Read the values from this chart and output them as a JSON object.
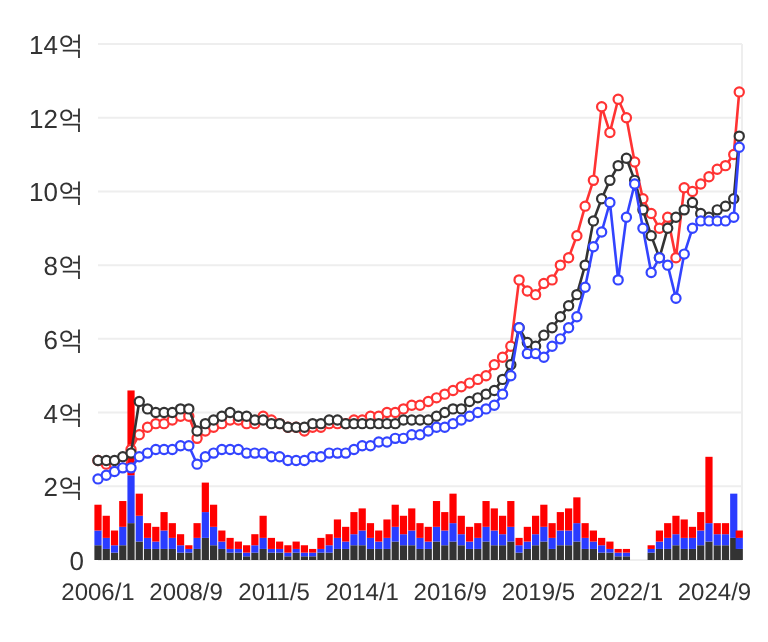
{
  "chart_data": {
    "type": "line",
    "x": [
      "2006-01",
      "2006-04",
      "2006-07",
      "2006-10",
      "2007-01",
      "2007-04",
      "2007-07",
      "2007-10",
      "2008-01",
      "2008-04",
      "2008-07",
      "2008-10",
      "2009-01",
      "2009-04",
      "2009-07",
      "2009-10",
      "2010-01",
      "2010-04",
      "2010-07",
      "2010-10",
      "2011-01",
      "2011-04",
      "2011-07",
      "2011-10",
      "2012-01",
      "2012-04",
      "2012-07",
      "2012-10",
      "2013-01",
      "2013-04",
      "2013-07",
      "2013-10",
      "2014-01",
      "2014-04",
      "2014-07",
      "2014-10",
      "2015-01",
      "2015-04",
      "2015-07",
      "2015-10",
      "2016-01",
      "2016-04",
      "2016-07",
      "2016-10",
      "2017-01",
      "2017-04",
      "2017-07",
      "2017-10",
      "2018-01",
      "2018-04",
      "2018-07",
      "2018-10",
      "2019-01",
      "2019-04",
      "2019-07",
      "2019-10",
      "2020-01",
      "2020-04",
      "2020-07",
      "2020-10",
      "2021-01",
      "2021-04",
      "2021-07",
      "2021-10",
      "2022-01",
      "2022-04",
      "2022-07",
      "2022-10",
      "2023-01",
      "2023-04",
      "2023-07",
      "2023-10",
      "2024-01",
      "2024-04",
      "2024-07",
      "2024-10",
      "2025-01",
      "2025-04",
      "2025-06"
    ],
    "series": [
      {
        "type": "bar",
        "color": "#333333",
        "values": [
          0.4,
          0.3,
          0.2,
          0.4,
          1.0,
          0.5,
          0.3,
          0.3,
          0.3,
          0.3,
          0.2,
          0.2,
          0.3,
          0.6,
          0.4,
          0.3,
          0.2,
          0.2,
          0.1,
          0.2,
          0.3,
          0.2,
          0.2,
          0.1,
          0.2,
          0.1,
          0.1,
          0.2,
          0.2,
          0.3,
          0.3,
          0.4,
          0.4,
          0.3,
          0.3,
          0.3,
          0.5,
          0.4,
          0.4,
          0.3,
          0.3,
          0.5,
          0.4,
          0.5,
          0.4,
          0.3,
          0.3,
          0.5,
          0.4,
          0.4,
          0.5,
          0.2,
          0.3,
          0.4,
          0.5,
          0.3,
          0.4,
          0.4,
          0.5,
          0.3,
          0.3,
          0.2,
          0.2,
          0.1,
          0.1,
          null,
          null,
          0.2,
          0.3,
          0.3,
          0.4,
          0.3,
          0.3,
          0.4,
          0.5,
          0.4,
          0.4,
          0.6,
          0.3
        ]
      },
      {
        "type": "bar",
        "color": "#2a3cff",
        "values": [
          0.4,
          0.3,
          0.2,
          0.5,
          1.3,
          0.7,
          0.3,
          0.2,
          0.5,
          0.3,
          0.2,
          0.1,
          0.3,
          0.7,
          0.5,
          0.2,
          0.1,
          0.1,
          0.1,
          0.2,
          0.3,
          0.1,
          0.1,
          0.1,
          0.1,
          0.1,
          0.1,
          0.1,
          0.2,
          0.3,
          0.2,
          0.3,
          0.4,
          0.3,
          0.2,
          0.3,
          0.4,
          0.3,
          0.4,
          0.3,
          0.2,
          0.4,
          0.4,
          0.5,
          0.3,
          0.2,
          0.3,
          0.4,
          0.4,
          0.3,
          0.4,
          0.2,
          0.2,
          0.3,
          0.4,
          0.3,
          0.4,
          0.4,
          0.5,
          0.3,
          0.2,
          0.2,
          0.1,
          0.1,
          0.1,
          null,
          null,
          0.1,
          0.2,
          0.3,
          0.3,
          0.3,
          0.3,
          0.4,
          0.5,
          0.3,
          0.3,
          1.2,
          0.3
        ]
      },
      {
        "type": "bar",
        "color": "#ff0000",
        "values": [
          0.7,
          0.6,
          0.4,
          0.7,
          2.3,
          0.6,
          0.4,
          0.4,
          0.5,
          0.4,
          0.3,
          0.1,
          0.4,
          0.8,
          0.6,
          0.3,
          0.3,
          0.2,
          0.2,
          0.3,
          0.6,
          0.3,
          0.2,
          0.2,
          0.2,
          0.2,
          0.1,
          0.3,
          0.3,
          0.5,
          0.4,
          0.6,
          0.6,
          0.4,
          0.3,
          0.5,
          0.6,
          0.5,
          0.6,
          0.4,
          0.4,
          0.7,
          0.5,
          0.8,
          0.5,
          0.4,
          0.4,
          0.7,
          0.6,
          0.5,
          0.7,
          0.2,
          0.4,
          0.5,
          0.6,
          0.4,
          0.5,
          0.6,
          0.7,
          0.4,
          0.3,
          0.2,
          0.2,
          0.1,
          0.1,
          null,
          null,
          0.1,
          0.3,
          0.4,
          0.5,
          0.5,
          0.3,
          0.5,
          1.8,
          0.3,
          0.3,
          null,
          0.2
        ]
      },
      {
        "color": "#ff3333",
        "values": [
          2.7,
          2.6,
          2.6,
          2.7,
          3.0,
          3.4,
          3.6,
          3.7,
          3.7,
          3.8,
          3.9,
          3.9,
          3.3,
          3.5,
          3.6,
          3.7,
          3.8,
          3.8,
          3.7,
          3.7,
          3.9,
          3.8,
          3.7,
          3.6,
          3.6,
          3.5,
          3.6,
          3.6,
          3.7,
          3.7,
          3.7,
          3.8,
          3.8,
          3.9,
          3.9,
          4.0,
          4.0,
          4.1,
          4.2,
          4.2,
          4.3,
          4.4,
          4.5,
          4.6,
          4.7,
          4.8,
          4.9,
          5.0,
          5.3,
          5.5,
          5.8,
          7.6,
          7.3,
          7.2,
          7.5,
          7.6,
          8.0,
          8.2,
          8.8,
          9.6,
          10.3,
          12.3,
          11.6,
          12.5,
          12.0,
          10.8,
          9.8,
          9.4,
          9.0,
          9.3,
          8.2,
          10.1,
          10.0,
          10.2,
          10.4,
          10.6,
          10.7,
          11.0,
          12.7
        ]
      },
      {
        "color": "#333333",
        "values": [
          2.7,
          2.7,
          2.7,
          2.8,
          2.9,
          4.3,
          4.1,
          4.0,
          4.0,
          4.0,
          4.1,
          4.1,
          3.5,
          3.7,
          3.8,
          3.9,
          4.0,
          3.9,
          3.9,
          3.8,
          3.8,
          3.7,
          3.7,
          3.6,
          3.6,
          3.6,
          3.7,
          3.7,
          3.8,
          3.8,
          3.7,
          3.7,
          3.7,
          3.7,
          3.7,
          3.7,
          3.7,
          3.8,
          3.8,
          3.8,
          3.8,
          3.9,
          4.0,
          4.1,
          4.1,
          4.3,
          4.4,
          4.5,
          4.6,
          4.9,
          5.3,
          6.3,
          5.9,
          5.8,
          6.1,
          6.3,
          6.6,
          6.9,
          7.2,
          8.0,
          9.2,
          9.8,
          10.3,
          10.7,
          10.9,
          10.3,
          9.5,
          8.8,
          8.2,
          9.0,
          9.3,
          9.5,
          9.7,
          9.4,
          9.3,
          9.5,
          9.6,
          9.8,
          11.5
        ]
      },
      {
        "color": "#3344ff",
        "values": [
          2.2,
          2.3,
          2.4,
          2.5,
          2.5,
          2.8,
          2.9,
          3.0,
          3.0,
          3.0,
          3.1,
          3.1,
          2.6,
          2.8,
          2.9,
          3.0,
          3.0,
          3.0,
          2.9,
          2.9,
          2.9,
          2.8,
          2.8,
          2.7,
          2.7,
          2.7,
          2.8,
          2.8,
          2.9,
          2.9,
          2.9,
          3.0,
          3.1,
          3.1,
          3.2,
          3.2,
          3.3,
          3.3,
          3.4,
          3.4,
          3.5,
          3.6,
          3.6,
          3.7,
          3.8,
          3.9,
          4.0,
          4.1,
          4.2,
          4.5,
          5.0,
          6.3,
          5.6,
          5.6,
          5.5,
          5.8,
          6.0,
          6.3,
          6.6,
          7.4,
          8.5,
          8.9,
          9.7,
          7.6,
          9.3,
          10.2,
          9.0,
          7.8,
          8.2,
          8.0,
          7.1,
          8.3,
          9.0,
          9.2,
          9.2,
          9.2,
          9.2,
          9.3,
          11.2
        ]
      }
    ],
    "xlim": [
      "2006-01",
      "2025-07"
    ],
    "xticks": [
      {
        "value": "2006-01",
        "label": "2006/1"
      },
      {
        "value": "2008-09",
        "label": "2008/9"
      },
      {
        "value": "2011-05",
        "label": "2011/5"
      },
      {
        "value": "2014-01",
        "label": "2014/1"
      },
      {
        "value": "2016-09",
        "label": "2016/9"
      },
      {
        "value": "2019-05",
        "label": "2019/5"
      },
      {
        "value": "2022-01",
        "label": "2022/1"
      },
      {
        "value": "2024-09",
        "label": "2024/9"
      }
    ],
    "ylim": [
      0,
      14
    ],
    "yticks": [
      0,
      {
        "value": 2,
        "label": "2억"
      },
      {
        "value": 4,
        "label": "4억"
      },
      {
        "value": 6,
        "label": "6억"
      },
      {
        "value": 8,
        "label": "8억"
      },
      {
        "value": 10,
        "label": "10억"
      },
      {
        "value": 12,
        "label": "12억"
      },
      {
        "value": 14,
        "label": "14억"
      }
    ],
    "stacked": true,
    "grid": "y",
    "marker": "circle"
  }
}
